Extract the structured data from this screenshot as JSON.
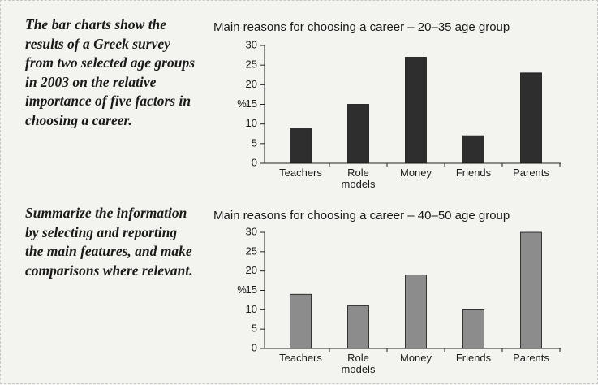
{
  "instructions": [
    "The bar charts show the results of a Greek survey from two selected age groups in 2003 on the relative importance of five factors in choosing a career.",
    "Summarize the information by selecting and reporting the main features, and make comparisons where relevant."
  ],
  "chart_data": [
    {
      "type": "bar",
      "title": "Main reasons for choosing a career – 20–35 age group",
      "y_label": "%",
      "categories": [
        "Teachers",
        "Role models",
        "Money",
        "Friends",
        "Parents"
      ],
      "values": [
        9,
        15,
        27,
        7,
        23
      ],
      "color": "#2e2e2e",
      "ylim": [
        0,
        30
      ],
      "yticks": [
        0,
        5,
        10,
        15,
        20,
        25,
        30
      ]
    },
    {
      "type": "bar",
      "title": "Main reasons for choosing a career – 40–50 age group",
      "y_label": "%",
      "categories": [
        "Teachers",
        "Role models",
        "Money",
        "Friends",
        "Parents"
      ],
      "values": [
        14,
        11,
        19,
        10,
        30
      ],
      "color": "#8c8c8c",
      "ylim": [
        0,
        30
      ],
      "yticks": [
        0,
        5,
        10,
        15,
        20,
        25,
        30
      ]
    }
  ]
}
